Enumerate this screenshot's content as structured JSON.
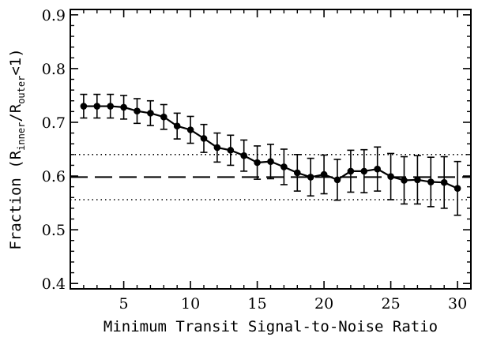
{
  "chart_data": {
    "type": "line",
    "title": "",
    "xlabel": "Minimum Transit Signal-to-Noise Ratio",
    "ylabel": {
      "prefix": "Fraction (R",
      "sub1": "inner",
      "mid": "/R",
      "sub2": "outer",
      "suffix": "<1)"
    },
    "xlim": [
      1,
      31
    ],
    "ylim": [
      0.39,
      0.91
    ],
    "xticks": [
      5,
      10,
      15,
      20,
      25,
      30
    ],
    "yticks": [
      0.4,
      0.5,
      0.6,
      0.7,
      0.8,
      0.9
    ],
    "xtick_labels": [
      "5",
      "10",
      "15",
      "20",
      "25",
      "30"
    ],
    "ytick_labels": [
      "0.4",
      "0.5",
      "0.6",
      "0.7",
      "0.8",
      "0.9"
    ],
    "reference_lines": [
      {
        "style": "dashed",
        "y": 0.598
      },
      {
        "style": "dotted",
        "y": 0.64
      },
      {
        "style": "dotted",
        "y": 0.556
      }
    ],
    "series": [
      {
        "x": [
          2,
          3,
          4,
          5,
          6,
          7,
          8,
          9,
          10,
          11,
          12,
          13,
          14,
          15,
          16,
          17,
          18,
          19,
          20,
          21,
          22,
          23,
          24,
          25,
          26,
          27,
          28,
          29,
          30
        ],
        "y": [
          0.73,
          0.73,
          0.73,
          0.728,
          0.721,
          0.717,
          0.71,
          0.693,
          0.686,
          0.67,
          0.653,
          0.648,
          0.638,
          0.625,
          0.627,
          0.617,
          0.606,
          0.598,
          0.603,
          0.593,
          0.609,
          0.609,
          0.613,
          0.599,
          0.592,
          0.593,
          0.589,
          0.588,
          0.577
        ],
        "err": [
          0.022,
          0.022,
          0.022,
          0.022,
          0.023,
          0.023,
          0.023,
          0.024,
          0.025,
          0.026,
          0.027,
          0.028,
          0.029,
          0.031,
          0.032,
          0.033,
          0.034,
          0.035,
          0.036,
          0.038,
          0.039,
          0.04,
          0.041,
          0.043,
          0.044,
          0.045,
          0.046,
          0.048,
          0.05
        ]
      }
    ]
  }
}
